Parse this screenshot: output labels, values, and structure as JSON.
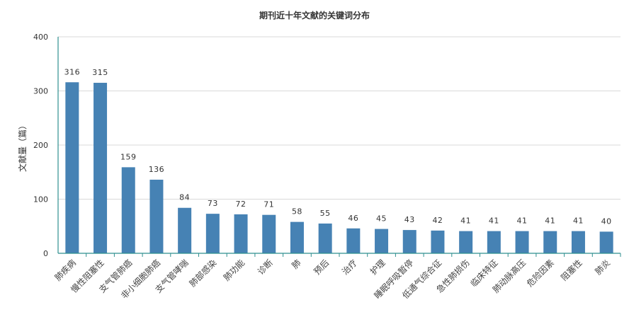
{
  "chart_data": {
    "type": "bar",
    "title": "期刊近十年文献的关键词分布",
    "xlabel": "",
    "ylabel": "文献量（篇）",
    "ylim": [
      0,
      400
    ],
    "yticks": [
      0,
      100,
      200,
      300,
      400
    ],
    "grid": true,
    "legend": false,
    "categories": [
      "肺疾病",
      "慢性阻塞性",
      "支气管肺癌",
      "非小细胞肺癌",
      "支气管哮喘",
      "肺部感染",
      "肺功能",
      "诊断",
      "肺",
      "预后",
      "治疗",
      "护理",
      "睡眠呼吸暂停",
      "低通气综合征",
      "急性肺损伤",
      "临床特征",
      "肺动脉高压",
      "危险因素",
      "阻塞性",
      "肺炎"
    ],
    "values": [
      316,
      315,
      159,
      136,
      84,
      73,
      72,
      71,
      58,
      55,
      46,
      45,
      43,
      42,
      41,
      41,
      41,
      41,
      41,
      40
    ],
    "colors": {
      "bar": "#4682b4",
      "axis": "#2f8f8f",
      "grid": "#d9d9d9",
      "text": "#333333"
    }
  }
}
